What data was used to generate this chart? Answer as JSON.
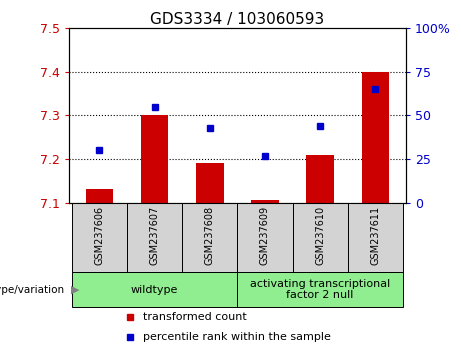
{
  "title": "GDS3334 / 103060593",
  "samples": [
    "GSM237606",
    "GSM237607",
    "GSM237608",
    "GSM237609",
    "GSM237610",
    "GSM237611"
  ],
  "red_values": [
    7.13,
    7.3,
    7.19,
    7.105,
    7.21,
    7.4
  ],
  "blue_values": [
    30,
    55,
    43,
    27,
    44,
    65
  ],
  "ylim_left": [
    7.1,
    7.5
  ],
  "ylim_right": [
    0,
    100
  ],
  "yticks_left": [
    7.1,
    7.2,
    7.3,
    7.4,
    7.5
  ],
  "yticks_right": [
    0,
    25,
    50,
    75,
    100
  ],
  "ytick_labels_right": [
    "0",
    "25",
    "50",
    "75",
    "100%"
  ],
  "red_color": "#cc0000",
  "blue_color": "#0000cc",
  "bar_width": 0.5,
  "groups": [
    {
      "label": "wildtype",
      "indices": [
        0,
        1,
        2
      ],
      "color": "#90ee90"
    },
    {
      "label": "activating transcriptional\nfactor 2 null",
      "indices": [
        3,
        4,
        5
      ],
      "color": "#90ee90"
    }
  ],
  "genotype_label": "genotype/variation",
  "legend_items": [
    {
      "label": "transformed count",
      "color": "#cc0000"
    },
    {
      "label": "percentile rank within the sample",
      "color": "#0000cc"
    }
  ],
  "grid_color": "black",
  "sample_bg": "#d3d3d3",
  "plot_bg": "white",
  "baseline": 7.1,
  "grid_yticks": [
    7.2,
    7.3,
    7.4
  ],
  "title_fontsize": 11,
  "tick_fontsize": 9,
  "sample_fontsize": 7,
  "legend_fontsize": 8,
  "group_fontsize": 8
}
